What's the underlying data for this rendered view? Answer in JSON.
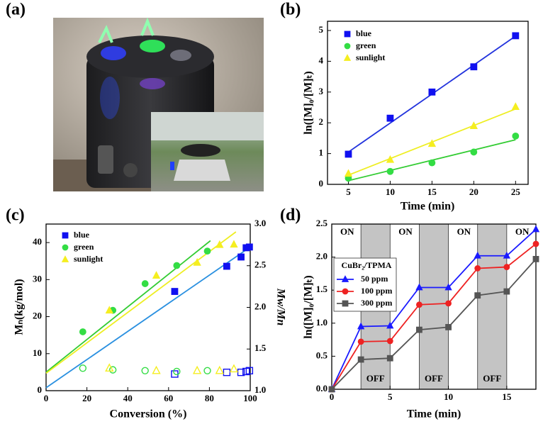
{
  "panel_labels": [
    "(a)",
    "(b)",
    "(c)",
    "(d)"
  ],
  "chart_data": [
    {
      "type": "scatter",
      "xlabel": "Time (min)",
      "ylabel": "ln([M]₀/[M]ₜ)",
      "x": [
        5,
        10,
        15,
        20,
        25
      ],
      "xlim": [
        2.5,
        26.5
      ],
      "xticks": [
        5,
        10,
        15,
        20,
        25
      ],
      "ylim": [
        0,
        5.3
      ],
      "yticks": [
        0,
        1,
        2,
        3,
        4,
        5
      ],
      "series": [
        {
          "name": "blue",
          "color": "#1010f0",
          "line_color": "#2233dd",
          "marker": "square",
          "values": [
            0.98,
            2.15,
            3.0,
            3.82,
            4.83
          ],
          "fit_x": [
            5,
            25
          ],
          "fit_values": [
            1.05,
            4.82
          ]
        },
        {
          "name": "green",
          "color": "#33dd44",
          "line_color": "#33cc33",
          "marker": "circle",
          "values": [
            0.2,
            0.42,
            0.7,
            1.05,
            1.57
          ],
          "fit_x": [
            5,
            25
          ],
          "fit_values": [
            0.12,
            1.45
          ]
        },
        {
          "name": "sunlight",
          "color": "#f5ee20",
          "line_color": "#eeee22",
          "marker": "triangle",
          "values": [
            0.35,
            0.8,
            1.32,
            1.9,
            2.52
          ],
          "fit_x": [
            5,
            25
          ],
          "fit_values": [
            0.3,
            2.45
          ]
        }
      ]
    },
    {
      "type": "scatter",
      "xlabel": "Conversion (%)",
      "ylabel": "Mₙ(kg/mol)",
      "y2label": "Mw/Mn",
      "xlim": [
        0,
        100
      ],
      "xticks": [
        0,
        20,
        40,
        60,
        80,
        100
      ],
      "ylim": [
        0,
        45
      ],
      "yticks": [
        0,
        10,
        20,
        30,
        40
      ],
      "y2lim": [
        1.0,
        3.0
      ],
      "y2ticks": [
        {
          "value": 1.0,
          "label": "1.0"
        },
        1.5,
        {
          "value": 2.0,
          "label": "2.0"
        },
        2.5,
        {
          "value": 3.0,
          "label": "3.0"
        }
      ],
      "series": [
        {
          "name": "blue",
          "color": "#1010f0",
          "line_color": "#2a90e0",
          "marker": "square",
          "x": [
            63,
            88.5,
            95.5,
            98,
            99.6
          ],
          "values": [
            26.8,
            33.6,
            36.1,
            38.6,
            38.8
          ],
          "fit_x": [
            0,
            100
          ],
          "fit_values": [
            0.8,
            38.8
          ]
        },
        {
          "name": "green",
          "color": "#33dd44",
          "line_color": "#33cc33",
          "marker": "circle",
          "x": [
            18,
            32.7,
            48.5,
            64,
            79
          ],
          "values": [
            15.9,
            21.7,
            28.9,
            33.8,
            37.7
          ],
          "fit_x": [
            0,
            80.5
          ],
          "fit_values": [
            5.0,
            40.5
          ]
        },
        {
          "name": "sunlight",
          "color": "#f5ee20",
          "line_color": "#eeee22",
          "marker": "triangle",
          "x": [
            31,
            54,
            74,
            85,
            92
          ],
          "values": [
            21.7,
            31.1,
            34.6,
            39.4,
            39.5
          ],
          "fit_x": [
            0,
            93
          ],
          "fit_values": [
            4.7,
            42.9
          ]
        },
        {
          "color": "#1010f0",
          "marker": "square",
          "hollow": true,
          "axis": "y2",
          "x": [
            63,
            88.5,
            95.5,
            98,
            99.6
          ],
          "values": [
            1.2,
            1.22,
            1.22,
            1.23,
            1.24
          ]
        },
        {
          "color": "#33dd44",
          "marker": "circle",
          "hollow": true,
          "axis": "y2",
          "x": [
            18,
            32.7,
            48.5,
            64,
            79
          ],
          "values": [
            1.27,
            1.25,
            1.24,
            1.23,
            1.24
          ]
        },
        {
          "color": "#f5ee20",
          "marker": "triangle",
          "hollow": true,
          "axis": "y2",
          "x": [
            31,
            54,
            74,
            85,
            92
          ],
          "values": [
            1.27,
            1.24,
            1.24,
            1.24,
            1.26
          ]
        }
      ]
    },
    {
      "type": "line",
      "xlabel": "Time (min)",
      "ylabel": "ln([M]₀/[M]ₜ)",
      "x": [
        0,
        2.5,
        5,
        7.5,
        10,
        12.5,
        15,
        17.5
      ],
      "xlim": [
        0,
        17.5
      ],
      "xticks": [
        0,
        5,
        10,
        15
      ],
      "ylim": [
        0,
        2.5
      ],
      "yticks": [
        {
          "value": 0,
          "label": "0.0"
        },
        0.5,
        {
          "value": 1.0,
          "label": "1.0"
        },
        1.5,
        {
          "value": 2.0,
          "label": "2.0"
        },
        2.5
      ],
      "off_intervals": [
        [
          2.5,
          5
        ],
        [
          7.5,
          10
        ],
        [
          12.5,
          15
        ]
      ],
      "on_label": "ON",
      "off_label": "OFF",
      "shade_color": "#c4c4c4",
      "legend_title": "CuBr₂/TPMA",
      "series": [
        {
          "name": "50 ppm",
          "color": "#1a1aff",
          "marker": "triangle",
          "values": [
            0,
            0.95,
            0.96,
            1.54,
            1.54,
            2.02,
            2.02,
            2.42
          ]
        },
        {
          "name": "100 ppm",
          "color": "#ee2222",
          "marker": "circle",
          "values": [
            0,
            0.72,
            0.73,
            1.28,
            1.3,
            1.83,
            1.85,
            2.2
          ]
        },
        {
          "name": "300 ppm",
          "color": "#555555",
          "marker": "square",
          "values": [
            0,
            0.45,
            0.47,
            0.9,
            0.94,
            1.42,
            1.48,
            1.97
          ]
        }
      ]
    }
  ]
}
